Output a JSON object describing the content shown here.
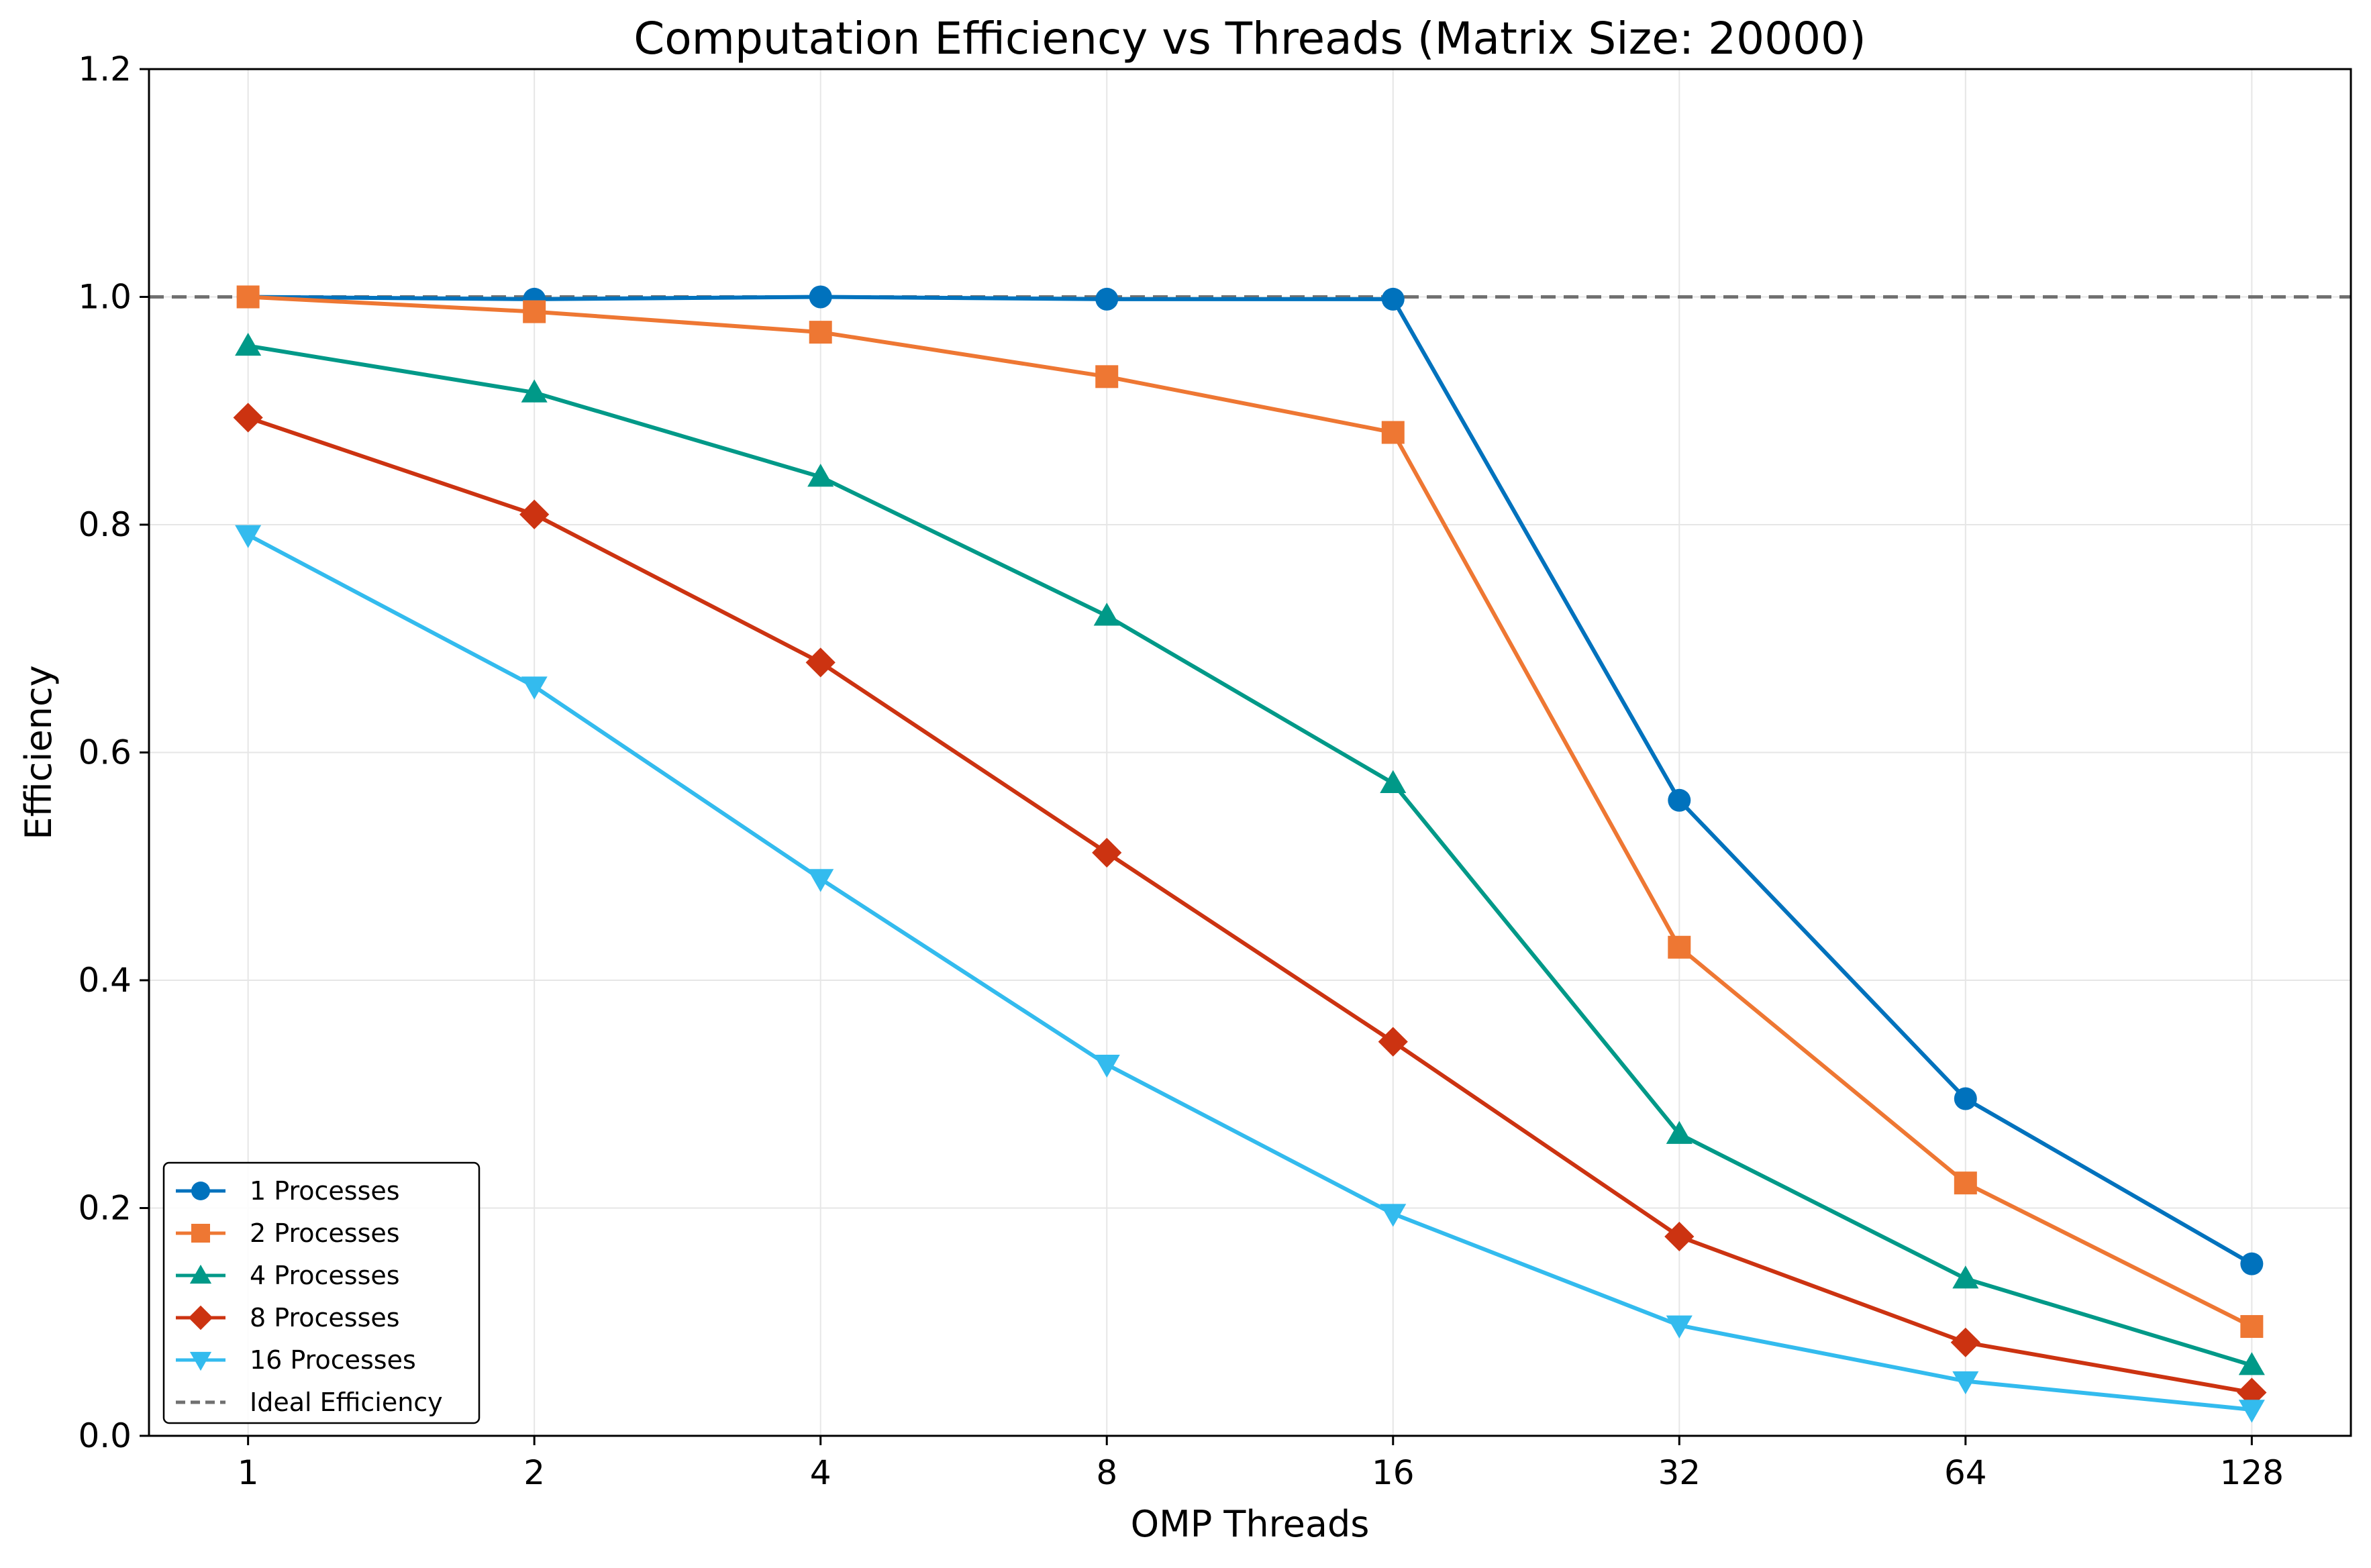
{
  "chart_data": {
    "type": "line",
    "title": "Computation Efficiency vs Threads (Matrix Size: 20000)",
    "xlabel": "OMP Threads",
    "ylabel": "Efficiency",
    "x_scale": "log2",
    "categories": [
      "1",
      "2",
      "4",
      "8",
      "16",
      "32",
      "64",
      "128"
    ],
    "x": [
      1,
      2,
      4,
      8,
      16,
      32,
      64,
      128
    ],
    "ylim": [
      0,
      1.2
    ],
    "yticks": [
      "0.0",
      "0.2",
      "0.4",
      "0.6",
      "0.8",
      "1.0",
      "1.2"
    ],
    "grid": true,
    "legend_position": "lower-left",
    "series": [
      {
        "name": "1 Processes",
        "color": "#0072BD",
        "marker": "circle",
        "values": [
          1.0,
          0.998,
          1.0,
          0.998,
          0.998,
          0.558,
          0.296,
          0.151
        ]
      },
      {
        "name": "2 Processes",
        "color": "#EE7733",
        "marker": "square",
        "values": [
          1.0,
          0.987,
          0.969,
          0.93,
          0.881,
          0.429,
          0.222,
          0.096
        ]
      },
      {
        "name": "4 Processes",
        "color": "#009988",
        "marker": "triangle-up",
        "values": [
          0.957,
          0.916,
          0.842,
          0.72,
          0.573,
          0.265,
          0.138,
          0.062
        ]
      },
      {
        "name": "8 Processes",
        "color": "#CC3311",
        "marker": "diamond",
        "values": [
          0.894,
          0.809,
          0.679,
          0.512,
          0.346,
          0.175,
          0.082,
          0.038
        ]
      },
      {
        "name": "16 Processes",
        "color": "#33BBEE",
        "marker": "triangle-down",
        "values": [
          0.791,
          0.658,
          0.489,
          0.326,
          0.195,
          0.097,
          0.048,
          0.023
        ]
      }
    ],
    "reference_line": {
      "name": "Ideal Efficiency",
      "value": 1.0,
      "color": "#707070",
      "style": "dashed"
    }
  }
}
